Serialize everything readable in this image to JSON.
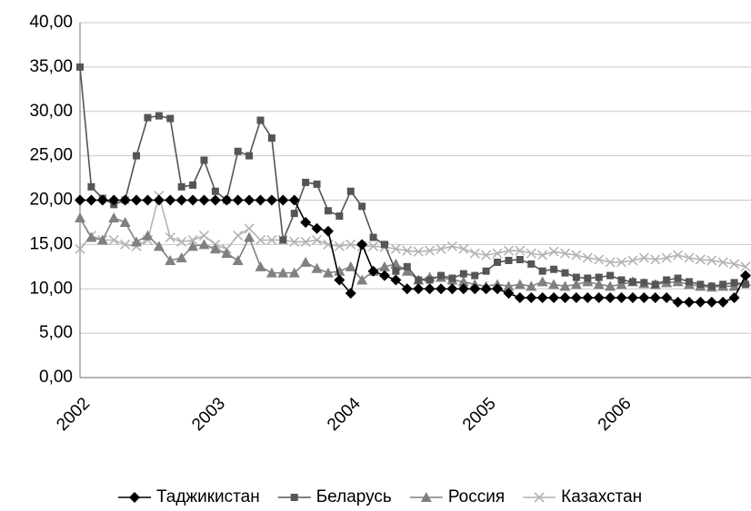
{
  "chart_data": {
    "type": "line",
    "categories": [
      "2002",
      null,
      null,
      null,
      null,
      null,
      null,
      null,
      null,
      null,
      null,
      null,
      "2003",
      null,
      null,
      null,
      null,
      null,
      null,
      null,
      null,
      null,
      null,
      null,
      "2004",
      null,
      null,
      null,
      null,
      null,
      null,
      null,
      null,
      null,
      null,
      null,
      "2005",
      null,
      null,
      null,
      null,
      null,
      null,
      null,
      null,
      null,
      null,
      null,
      "2006",
      null,
      null,
      null,
      null,
      null,
      null,
      null,
      null,
      null,
      null,
      null
    ],
    "ylim": [
      0,
      40
    ],
    "yticks": [
      {
        "value": 0,
        "label": "0,00"
      },
      {
        "value": 5,
        "label": "5,00"
      },
      {
        "value": 10,
        "label": "10,00"
      },
      {
        "value": 15,
        "label": "15,00"
      },
      {
        "value": 20,
        "label": "20,00"
      },
      {
        "value": 25,
        "label": "25,00"
      },
      {
        "value": 30,
        "label": "30,00"
      },
      {
        "value": 35,
        "label": "35,00"
      },
      {
        "value": 40,
        "label": "40,00"
      }
    ],
    "grid": true,
    "legend": "bottom",
    "series": [
      {
        "name": "Таджикистан",
        "color": "#000000",
        "marker": "diamond",
        "values": [
          20,
          20,
          20,
          20,
          20,
          20,
          20,
          20,
          20,
          20,
          20,
          20,
          20,
          20,
          20,
          20,
          20,
          20,
          20,
          20,
          17.5,
          16.8,
          16.5,
          11,
          9.5,
          15,
          12,
          11.5,
          11,
          10,
          10,
          10,
          10,
          10,
          10,
          10,
          10,
          10,
          9.5,
          9,
          9,
          9,
          9,
          9,
          9,
          9,
          9,
          9,
          9,
          9,
          9,
          9,
          9,
          8.5,
          8.5,
          8.5,
          8.5,
          8.5,
          9,
          11.5
        ]
      },
      {
        "name": "Беларусь",
        "color": "#555555",
        "marker": "square",
        "values": [
          35,
          21.5,
          20.2,
          19.5,
          20,
          25,
          29.3,
          29.5,
          29.2,
          21.5,
          21.7,
          24.5,
          21,
          20,
          25.5,
          25,
          29,
          27,
          15.5,
          18.5,
          22,
          21.8,
          18.8,
          18.2,
          21,
          19.3,
          15.8,
          15,
          12,
          12.5,
          11,
          11,
          11.5,
          11.2,
          11.7,
          11.5,
          12,
          13,
          13.2,
          13.3,
          12.8,
          12,
          12.2,
          11.8,
          11.3,
          11.2,
          11.3,
          11.5,
          11,
          10.8,
          10.7,
          10.5,
          11,
          11.2,
          10.8,
          10.5,
          10.3,
          10.5,
          10.7,
          10.5
        ]
      },
      {
        "name": "Россия",
        "color": "#808080",
        "marker": "triangle",
        "values": [
          18,
          15.8,
          15.5,
          18,
          17.5,
          15.3,
          16,
          14.8,
          13.2,
          13.5,
          14.8,
          15,
          14.5,
          14,
          13.2,
          15.8,
          12.5,
          11.8,
          11.8,
          11.8,
          13,
          12.3,
          11.8,
          12,
          12.5,
          11,
          12,
          12.5,
          12.8,
          12,
          11,
          11.3,
          11.3,
          11,
          10.8,
          10.5,
          10.3,
          10.5,
          10.3,
          10.5,
          10.3,
          10.8,
          10.5,
          10.3,
          10.5,
          10.8,
          10.5,
          10.3,
          10.5,
          10.8,
          10.6,
          10.5,
          10.7,
          10.8,
          10.5,
          10.3,
          10.2,
          10.3,
          10.3,
          10.8
        ]
      },
      {
        "name": "Казахстан",
        "color": "#b4b4b4",
        "marker": "x",
        "values": [
          14.5,
          16,
          15.5,
          15.5,
          15,
          14.8,
          15.5,
          20.5,
          15.8,
          15.3,
          15.5,
          16,
          15,
          14.5,
          16,
          16.8,
          15.5,
          15.5,
          15.5,
          15.3,
          15.3,
          15.5,
          15,
          14.8,
          15,
          14.8,
          14.8,
          14.7,
          14.5,
          14.3,
          14.2,
          14.3,
          14.5,
          14.8,
          14.5,
          14,
          13.8,
          14,
          14.3,
          14.3,
          14,
          13.8,
          14.2,
          14,
          13.8,
          13.5,
          13.3,
          13,
          13,
          13.2,
          13.5,
          13.3,
          13.5,
          13.8,
          13.5,
          13.3,
          13.2,
          13,
          12.8,
          12.5
        ]
      }
    ]
  }
}
